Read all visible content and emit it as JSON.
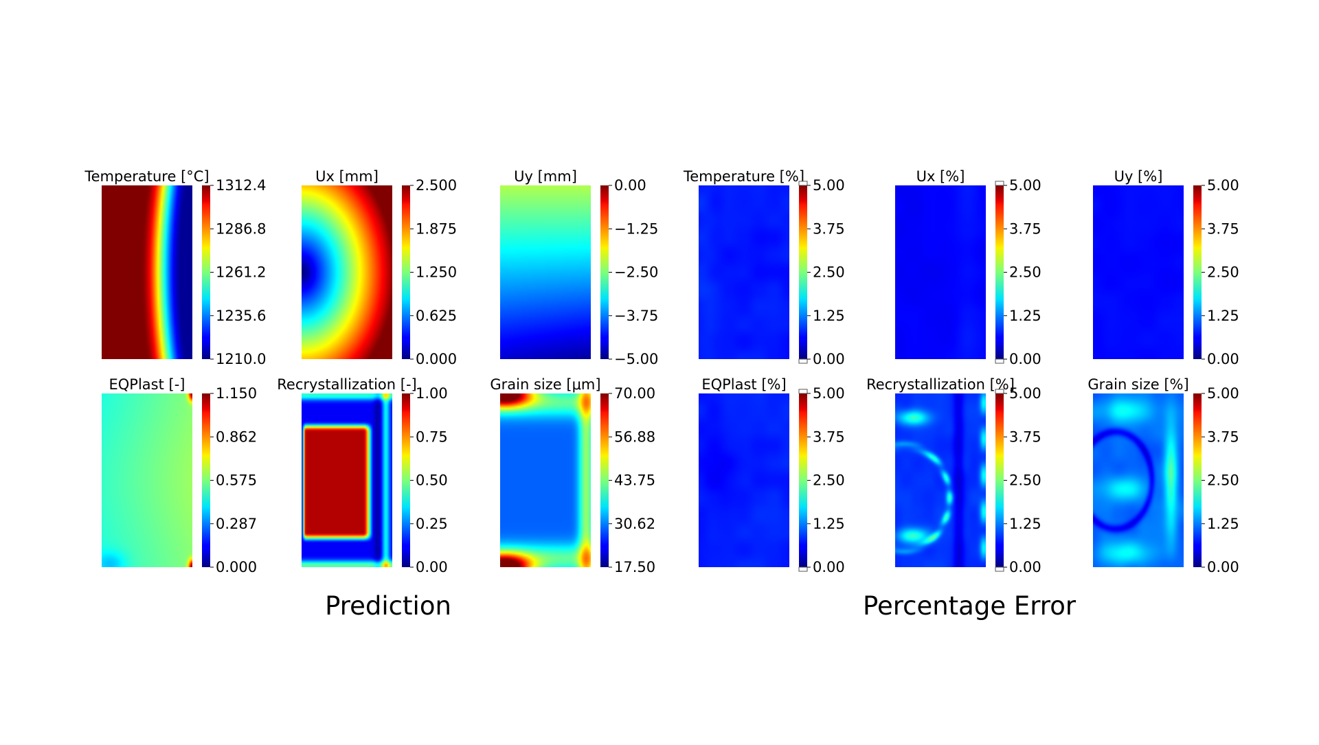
{
  "colors": {
    "colormap": "jet",
    "background": "#ffffff",
    "text": "#000000",
    "extend_marker": "#ffffff"
  },
  "group_labels": [
    "Prediction",
    "Percentage Error"
  ],
  "chart_data": [
    {
      "type": "heatmap",
      "title": "Temperature [°C]",
      "group": "Prediction",
      "colorbar_ticks": [
        "1312.4",
        "1286.8",
        "1261.2",
        "1235.6",
        "1210.0"
      ],
      "vmin": 1210.0,
      "vmax": 1312.4,
      "colormap": "jet",
      "pattern": "temp",
      "extend": false
    },
    {
      "type": "heatmap",
      "title": "Ux [mm]",
      "group": "Prediction",
      "colorbar_ticks": [
        "2.500",
        "1.875",
        "1.250",
        "0.625",
        "0.000"
      ],
      "vmin": 0.0,
      "vmax": 2.5,
      "colormap": "jet",
      "pattern": "ux",
      "extend": false
    },
    {
      "type": "heatmap",
      "title": "Uy [mm]",
      "group": "Prediction",
      "colorbar_ticks": [
        "0.00",
        "−1.25",
        "−2.50",
        "−3.75",
        "−5.00"
      ],
      "vmin": -5.0,
      "vmax": 0.0,
      "colormap": "jet",
      "pattern": "uy",
      "extend": false
    },
    {
      "type": "heatmap",
      "title": "Temperature [%]",
      "group": "Percentage Error",
      "colorbar_ticks": [
        "5.00",
        "3.75",
        "2.50",
        "1.25",
        "0.00"
      ],
      "vmin": 0.0,
      "vmax": 5.0,
      "colormap": "jet",
      "pattern": "err_temp",
      "extend": true
    },
    {
      "type": "heatmap",
      "title": "Ux [%]",
      "group": "Percentage Error",
      "colorbar_ticks": [
        "5.00",
        "3.75",
        "2.50",
        "1.25",
        "0.00"
      ],
      "vmin": 0.0,
      "vmax": 5.0,
      "colormap": "jet",
      "pattern": "err_ux",
      "extend": true
    },
    {
      "type": "heatmap",
      "title": "Uy [%]",
      "group": "Percentage Error",
      "colorbar_ticks": [
        "5.00",
        "3.75",
        "2.50",
        "1.25",
        "0.00"
      ],
      "vmin": 0.0,
      "vmax": 5.0,
      "colormap": "jet",
      "pattern": "err_uy",
      "extend": false
    },
    {
      "type": "heatmap",
      "title": "EQPlast [-]",
      "group": "Prediction",
      "colorbar_ticks": [
        "1.150",
        "0.862",
        "0.575",
        "0.287",
        "0.000"
      ],
      "vmin": 0.0,
      "vmax": 1.15,
      "colormap": "jet",
      "pattern": "eqplast",
      "extend": false
    },
    {
      "type": "heatmap",
      "title": "Recrystallization [-]",
      "group": "Prediction",
      "colorbar_ticks": [
        "1.00",
        "0.75",
        "0.50",
        "0.25",
        "0.00"
      ],
      "vmin": 0.0,
      "vmax": 1.0,
      "colormap": "jet",
      "pattern": "recryst",
      "extend": false
    },
    {
      "type": "heatmap",
      "title": "Grain size [μm]",
      "group": "Prediction",
      "colorbar_ticks": [
        "70.00",
        "56.88",
        "43.75",
        "30.62",
        "17.50"
      ],
      "vmin": 17.5,
      "vmax": 70.0,
      "colormap": "jet",
      "pattern": "grain",
      "extend": false
    },
    {
      "type": "heatmap",
      "title": "EQPlast [%]",
      "group": "Percentage Error",
      "colorbar_ticks": [
        "5.00",
        "3.75",
        "2.50",
        "1.25",
        "0.00"
      ],
      "vmin": 0.0,
      "vmax": 5.0,
      "colormap": "jet",
      "pattern": "err_eq",
      "extend": true
    },
    {
      "type": "heatmap",
      "title": "Recrystallization [%]",
      "group": "Percentage Error",
      "colorbar_ticks": [
        "5.00",
        "3.75",
        "2.50",
        "1.25",
        "0.00"
      ],
      "vmin": 0.0,
      "vmax": 5.0,
      "colormap": "jet",
      "pattern": "err_rx",
      "extend": true
    },
    {
      "type": "heatmap",
      "title": "Grain size [%]",
      "group": "Percentage Error",
      "colorbar_ticks": [
        "5.00",
        "3.75",
        "2.50",
        "1.25",
        "0.00"
      ],
      "vmin": 0.0,
      "vmax": 5.0,
      "colormap": "jet",
      "pattern": "err_gs",
      "extend": false
    }
  ]
}
